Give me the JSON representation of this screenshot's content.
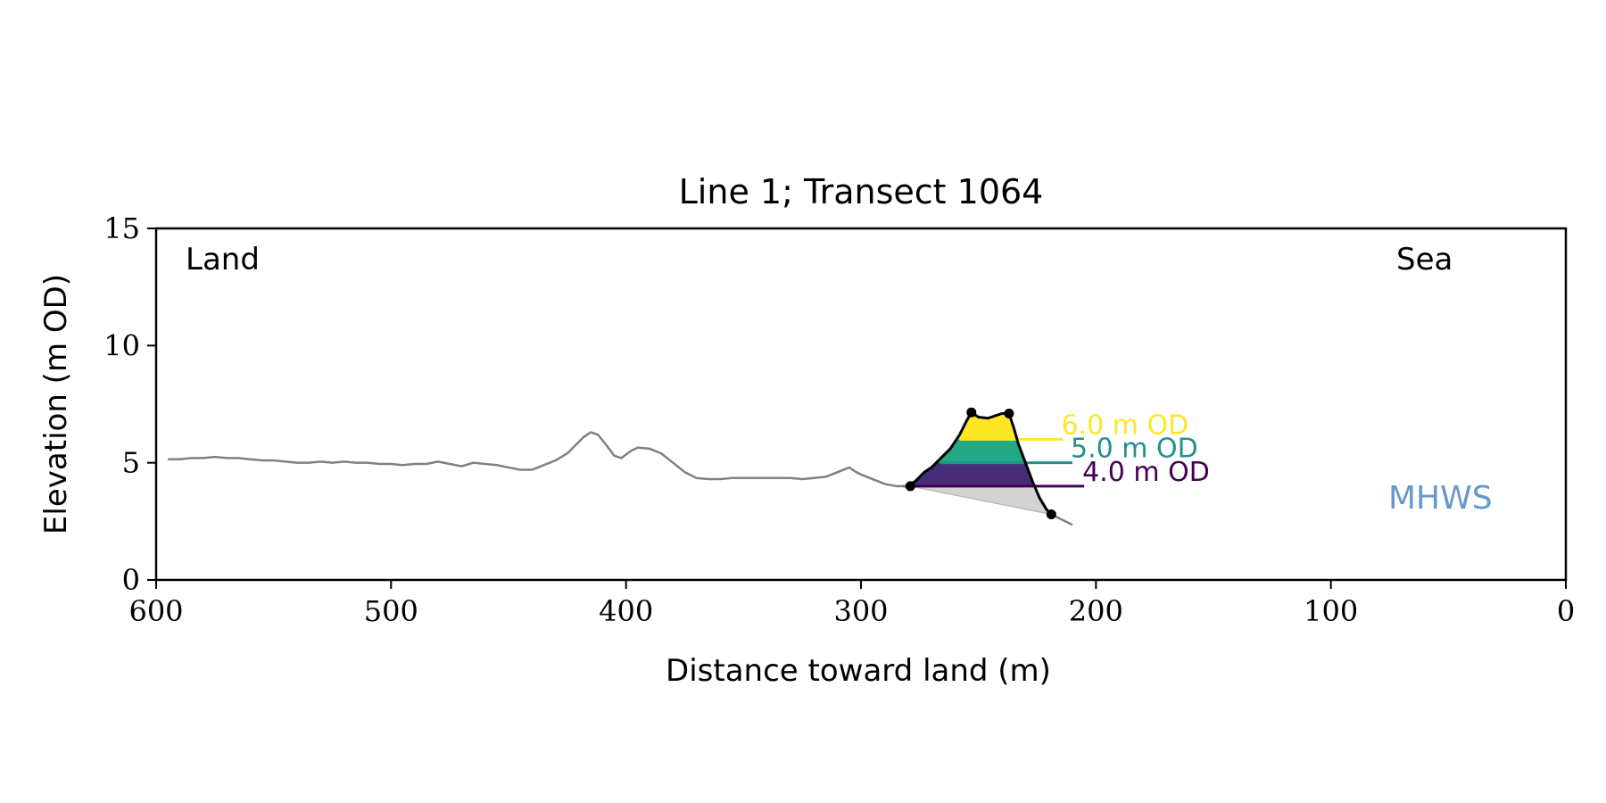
{
  "chart_data": {
    "type": "line",
    "title": "Line 1; Transect 1064",
    "xlabel": "Distance toward land (m)",
    "ylabel": "Elevation (m OD)",
    "xlim": [
      600,
      0
    ],
    "ylim": [
      0,
      15
    ],
    "x_ticks": [
      600,
      500,
      400,
      300,
      200,
      100,
      0
    ],
    "y_ticks": [
      0,
      5,
      10,
      15
    ],
    "grid": false,
    "annotations": {
      "land_label": "Land",
      "sea_label": "Sea",
      "mhws_label": "MHWS"
    },
    "profile": {
      "color": "#808080",
      "x": [
        595,
        590,
        585,
        580,
        575,
        570,
        565,
        560,
        555,
        550,
        545,
        540,
        535,
        530,
        525,
        520,
        515,
        510,
        505,
        500,
        495,
        490,
        485,
        480,
        475,
        470,
        465,
        460,
        455,
        450,
        445,
        440,
        435,
        430,
        425,
        422,
        418,
        415,
        412,
        408,
        405,
        402,
        398,
        395,
        390,
        385,
        380,
        375,
        370,
        365,
        360,
        355,
        350,
        345,
        340,
        335,
        330,
        325,
        320,
        315,
        310,
        305,
        302,
        300,
        295,
        290,
        285,
        280
      ],
      "y": [
        5.15,
        5.15,
        5.2,
        5.2,
        5.25,
        5.2,
        5.2,
        5.15,
        5.1,
        5.1,
        5.05,
        5.0,
        5.0,
        5.05,
        5.0,
        5.05,
        5.0,
        5.0,
        4.95,
        4.95,
        4.9,
        4.95,
        4.95,
        5.05,
        4.95,
        4.85,
        5.0,
        4.95,
        4.9,
        4.8,
        4.7,
        4.7,
        4.9,
        5.1,
        5.4,
        5.7,
        6.1,
        6.3,
        6.2,
        5.7,
        5.3,
        5.2,
        5.5,
        5.65,
        5.6,
        5.4,
        5.0,
        4.6,
        4.35,
        4.3,
        4.3,
        4.35,
        4.35,
        4.35,
        4.35,
        4.35,
        4.35,
        4.3,
        4.35,
        4.4,
        4.6,
        4.8,
        4.6,
        4.5,
        4.3,
        4.1,
        4.0,
        4.0
      ]
    },
    "tail": {
      "color": "#808080",
      "x": [
        219,
        215,
        212,
        210
      ],
      "y": [
        2.8,
        2.6,
        2.45,
        2.35
      ]
    },
    "dune_outline": {
      "color": "#000000",
      "x": [
        280,
        277,
        273,
        270,
        266,
        262,
        258,
        255,
        253,
        250,
        246,
        243,
        240,
        237,
        235,
        233,
        230,
        227,
        224,
        221,
        219
      ],
      "y": [
        4.0,
        4.2,
        4.6,
        4.8,
        5.2,
        5.6,
        6.2,
        6.8,
        7.15,
        6.95,
        6.9,
        7.0,
        7.1,
        7.1,
        6.5,
        5.8,
        5.0,
        4.2,
        3.5,
        3.0,
        2.8
      ]
    },
    "key_points": {
      "x": [
        279,
        253,
        237,
        219
      ],
      "y": [
        4.0,
        7.15,
        7.1,
        2.8
      ]
    },
    "base_line": {
      "x": [
        279,
        219
      ],
      "y": [
        4.0,
        2.8
      ]
    },
    "series": [
      {
        "name": "4.0 m OD",
        "level": 4.0,
        "color": "#440154",
        "line_x": [
          282,
          205
        ]
      },
      {
        "name": "5.0 m OD",
        "level": 5.0,
        "color": "#21918c",
        "line_x": [
          266,
          210
        ]
      },
      {
        "name": "6.0 m OD",
        "level": 6.0,
        "color": "#fde725",
        "line_x": [
          258,
          214
        ]
      }
    ],
    "fill_colors": {
      "below_4": "#d3d3d3",
      "4_to_5": "#472c7a",
      "5_to_6": "#22a884",
      "above_6": "#fde725"
    },
    "mhws_color": "#6699cc"
  }
}
